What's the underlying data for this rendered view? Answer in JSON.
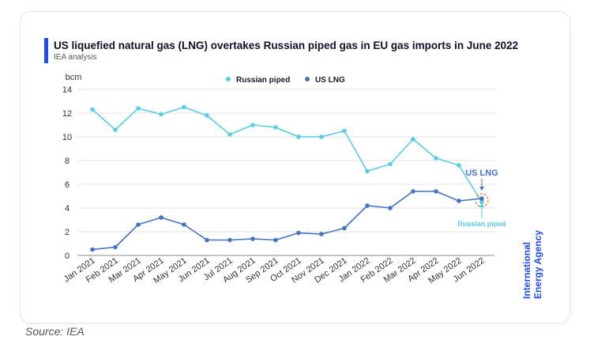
{
  "header": {
    "title": "US liquefied natural gas (LNG) overtakes Russian piped gas in EU gas imports in June 2022",
    "subtitle": "IEA analysis"
  },
  "footer": {
    "source": "Source: IEA"
  },
  "branding": {
    "agency_line1": "International",
    "agency_line2": "Energy Agency"
  },
  "colors": {
    "accent": "#1f4bf0",
    "russian": "#56cde6",
    "lng": "#4472c4",
    "highlight": "#f07a3e"
  },
  "chart_data": {
    "type": "line",
    "ylabel": "bcm",
    "ylim": [
      0,
      14
    ],
    "yticks": [
      0,
      2,
      4,
      6,
      8,
      10,
      12,
      14
    ],
    "grid": true,
    "legend_position": "top-center",
    "categories": [
      "Jan 2021",
      "Feb 2021",
      "Mar 2021",
      "Apr 2021",
      "May 2021",
      "Jun 2021",
      "Jul 2021",
      "Aug 2021",
      "Sep 2021",
      "Oct 2021",
      "Nov 2021",
      "Dec 2021",
      "Jan 2022",
      "Feb 2022",
      "Mar 2022",
      "Apr 2022",
      "May 2022",
      "Jun 2022"
    ],
    "series": [
      {
        "name": "Russian piped",
        "color": "#56cde6",
        "values": [
          12.3,
          10.6,
          12.4,
          11.9,
          12.5,
          11.8,
          10.2,
          11.0,
          10.8,
          10.0,
          10.0,
          10.5,
          7.1,
          7.7,
          9.8,
          8.2,
          7.6,
          4.5
        ]
      },
      {
        "name": "US LNG",
        "color": "#4472c4",
        "values": [
          0.5,
          0.7,
          2.6,
          3.2,
          2.6,
          1.3,
          1.3,
          1.4,
          1.3,
          1.9,
          1.8,
          2.3,
          4.2,
          4.0,
          5.4,
          5.4,
          4.6,
          4.8
        ]
      }
    ],
    "annotations": [
      {
        "text": "US LNG",
        "color": "#4472c4"
      },
      {
        "text": "Russian piped",
        "color": "#56cde6"
      }
    ]
  }
}
